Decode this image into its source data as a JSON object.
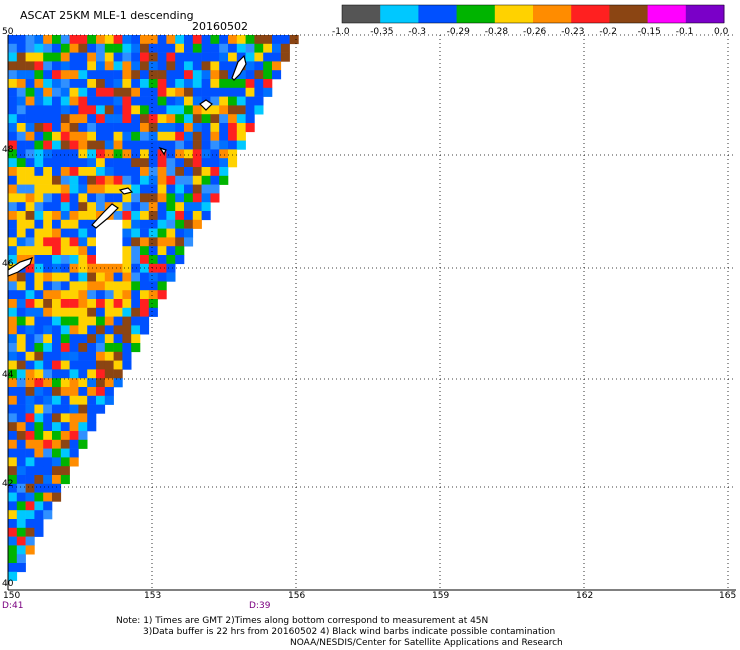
{
  "header": {
    "title": "ASCAT 25KM MLE-1 descending",
    "date": "20160502"
  },
  "colorbar": {
    "labels": [
      "-1.0",
      "-0.35",
      "-0.3",
      "-0.29",
      "-0.28",
      "-0.26",
      "-0.23",
      "-0.2",
      "-0.15",
      "-0.1",
      "0.0"
    ],
    "colors": [
      "#555555",
      "#00c8ff",
      "#0050ff",
      "#00b400",
      "#ffd200",
      "#ff8c00",
      "#ff2020",
      "#8b4513",
      "#ff00ff",
      "#7a00c8"
    ]
  },
  "axes": {
    "lat_labels": [
      "50",
      "48",
      "46",
      "44",
      "42",
      "40"
    ],
    "lon_labels": [
      "150",
      "153",
      "156",
      "159",
      "162",
      "165"
    ]
  },
  "times": {
    "left": "D:41",
    "mid": "D:39"
  },
  "notes": {
    "line1": "Note: 1) Times are GMT 2)Times along bottom correspond to measurement at 45N",
    "line2": "3)Data buffer is 22 hrs from 20160502 4) Black wind barbs indicate possible contamination",
    "line3": "NOAA/NESDIS/Center for Satellite Applications and Research"
  }
}
